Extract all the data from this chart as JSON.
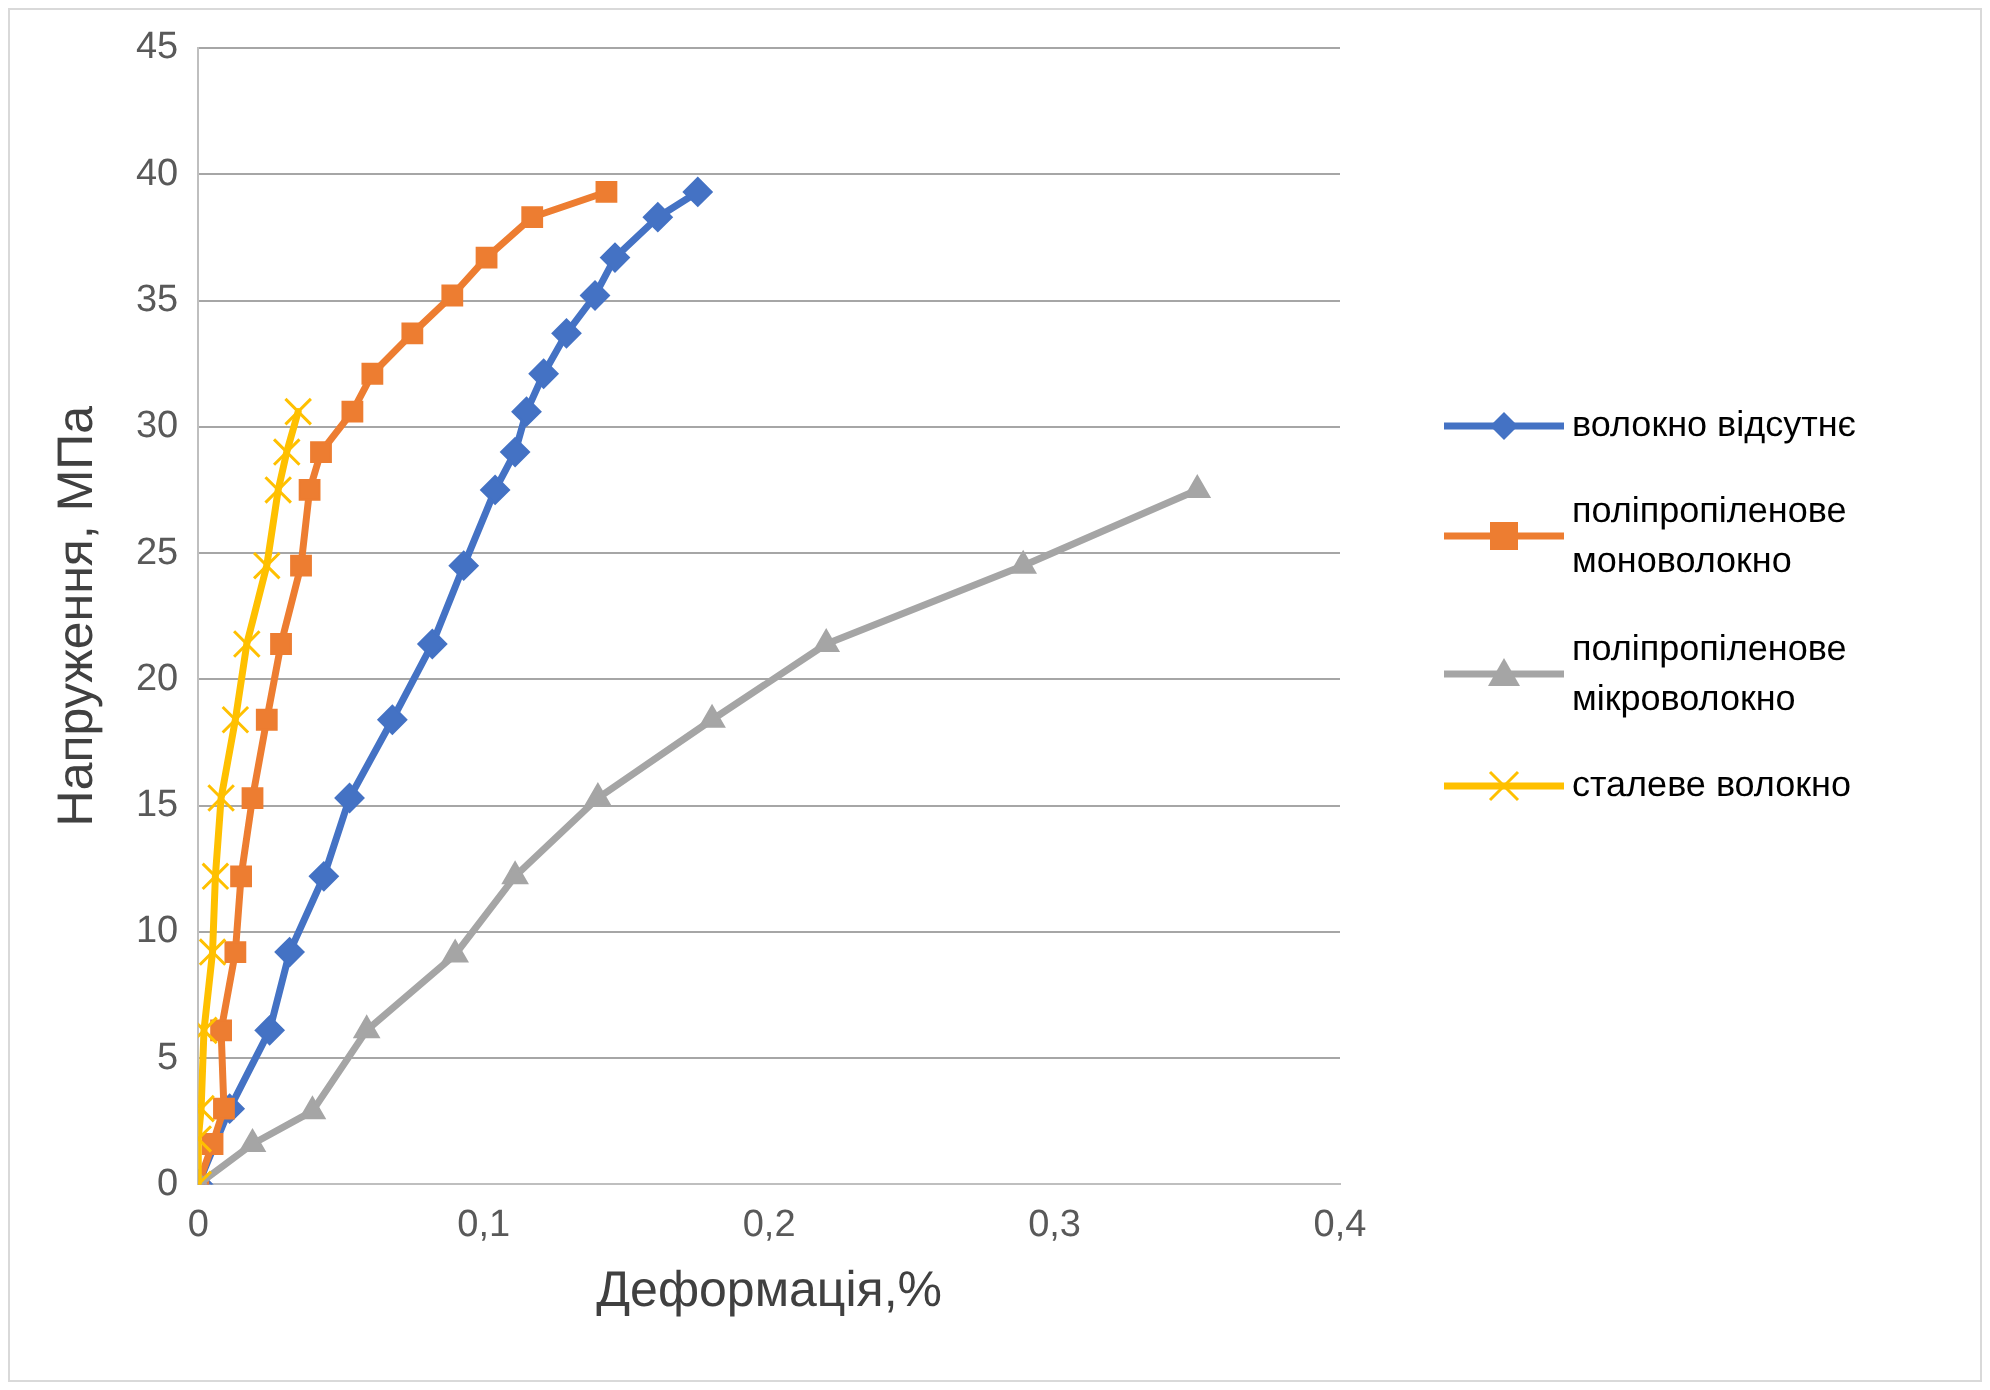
{
  "chart_data": {
    "type": "line",
    "xlabel": "Деформація,%",
    "ylabel": "Напруження, МПа",
    "xlim": [
      0,
      0.4
    ],
    "xticks": [
      0,
      {
        "value": 0.1,
        "label": "0,1"
      },
      {
        "value": 0.2,
        "label": "0,2"
      },
      {
        "value": 0.3,
        "label": "0,3"
      },
      {
        "value": 0.4,
        "label": "0,4"
      }
    ],
    "ylim": [
      0,
      45
    ],
    "yticks": [
      0,
      5,
      10,
      15,
      20,
      25,
      30,
      35,
      40,
      45
    ],
    "grid": "y",
    "legend": "right",
    "line_style": "solid",
    "series": [
      {
        "name": "волокно відсутнє",
        "color": "#4472c4",
        "marker": "diamond",
        "x": [
          0,
          0.011,
          0.025,
          0.032,
          0.044,
          0.053,
          0.068,
          0.082,
          0.093,
          0.104,
          0.111,
          0.115,
          0.121,
          0.129,
          0.139,
          0.146,
          0.161,
          0.175
        ],
        "values": [
          0,
          3,
          6.1,
          9.2,
          12.2,
          15.3,
          18.4,
          21.4,
          24.5,
          27.5,
          29,
          30.6,
          32.1,
          33.7,
          35.2,
          36.7,
          38.3,
          39.3
        ]
      },
      {
        "name": "поліпропіленове моноволокно",
        "color": "#ed7d31",
        "marker": "square",
        "x": [
          0,
          0.005,
          0.009,
          0.008,
          0.013,
          0.015,
          0.019,
          0.024,
          0.029,
          0.036,
          0.039,
          0.043,
          0.054,
          0.061,
          0.075,
          0.089,
          0.101,
          0.117,
          0.143
        ],
        "values": [
          0,
          1.6,
          3,
          6.1,
          9.2,
          12.2,
          15.3,
          18.4,
          21.4,
          24.5,
          27.5,
          29,
          30.6,
          32.1,
          33.7,
          35.2,
          36.7,
          38.3,
          39.3
        ]
      },
      {
        "name": "поліпропіленове мікроволокно",
        "color": "#a5a5a5",
        "marker": "triangle",
        "x": [
          0,
          0.019,
          0.04,
          0.059,
          0.09,
          0.111,
          0.14,
          0.18,
          0.22,
          0.289,
          0.35
        ],
        "values": [
          0,
          1.6,
          2.9,
          6.1,
          9.1,
          12.2,
          15.3,
          18.4,
          21.4,
          24.5,
          27.5
        ]
      },
      {
        "name": "сталеве волокно",
        "color": "#ffc000",
        "marker": "cross",
        "x": [
          0,
          0,
          0.001,
          0.002,
          0.005,
          0.006,
          0.008,
          0.013,
          0.017,
          0.024,
          0.028,
          0.031,
          0.035
        ],
        "values": [
          0,
          1.8,
          3,
          6.1,
          9.2,
          12.2,
          15.3,
          18.4,
          21.4,
          24.5,
          27.5,
          29,
          30.6
        ]
      }
    ]
  }
}
